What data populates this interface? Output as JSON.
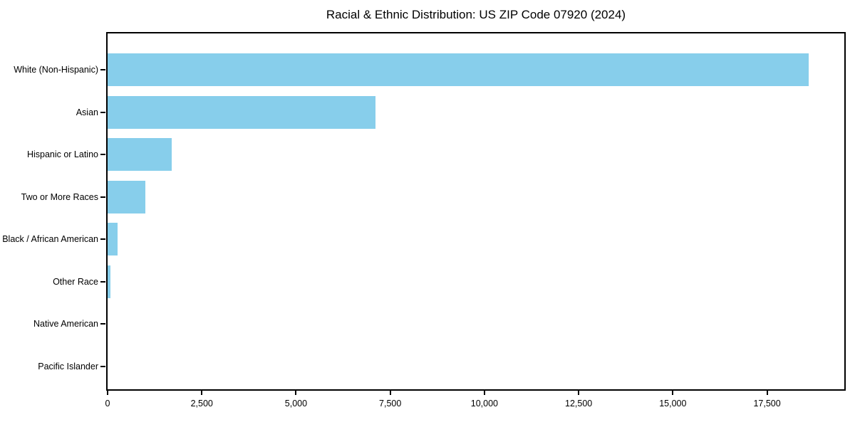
{
  "chart_data": {
    "type": "bar",
    "orientation": "horizontal",
    "title": "Racial & Ethnic Distribution: US ZIP Code 07920 (2024)",
    "categories": [
      "White (Non-Hispanic)",
      "Asian",
      "Hispanic or Latino",
      "Two or More Races",
      "Black / African American",
      "Other Race",
      "Native American",
      "Pacific Islander"
    ],
    "values": [
      18600,
      7100,
      1700,
      1000,
      270,
      85,
      0,
      0
    ],
    "xlabel": "",
    "ylabel": "",
    "xlim": [
      0,
      19550
    ],
    "xticks": [
      0,
      2500,
      5000,
      7500,
      10000,
      12500,
      15000,
      17500
    ],
    "xtick_labels": [
      "0",
      "2,500",
      "5,000",
      "7,500",
      "10,000",
      "12,500",
      "15,000",
      "17,500"
    ],
    "bar_color": "#87CEEB",
    "spine_color": "#000000",
    "text_color": "#000000",
    "background_color": "#ffffff",
    "grid": false,
    "legend_position": "none"
  }
}
